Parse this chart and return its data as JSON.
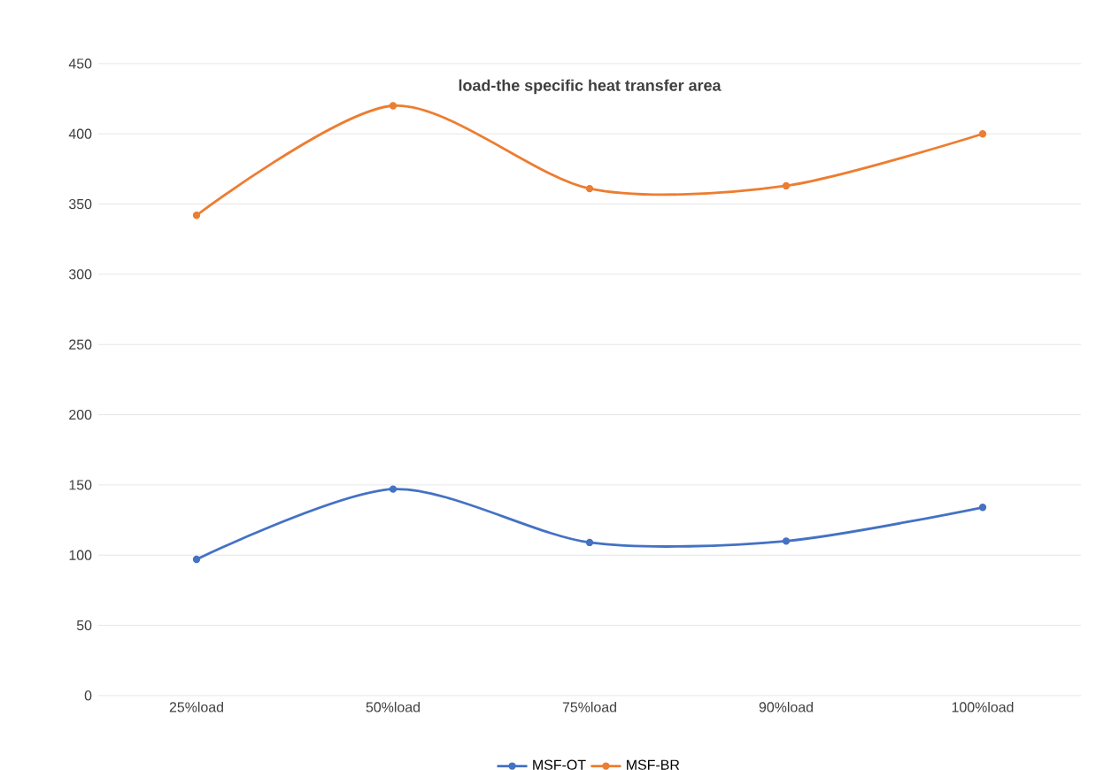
{
  "chart_data": {
    "type": "line",
    "title": "load-the specific heat transfer area",
    "categories": [
      "25%load",
      "50%load",
      "75%load",
      "90%load",
      "100%load"
    ],
    "series": [
      {
        "name": "MSF-OT",
        "color": "#4472c4",
        "values": [
          97,
          147,
          109,
          110,
          134
        ]
      },
      {
        "name": "MSF-BR",
        "color": "#ed7d31",
        "values": [
          342,
          420,
          361,
          363,
          400
        ]
      }
    ],
    "ylim": [
      0,
      450
    ],
    "yticks": [
      0,
      50,
      100,
      150,
      200,
      250,
      300,
      350,
      400,
      450
    ],
    "grid": "y",
    "legend": "bottom",
    "marker": "circle",
    "line_style": "solid"
  }
}
